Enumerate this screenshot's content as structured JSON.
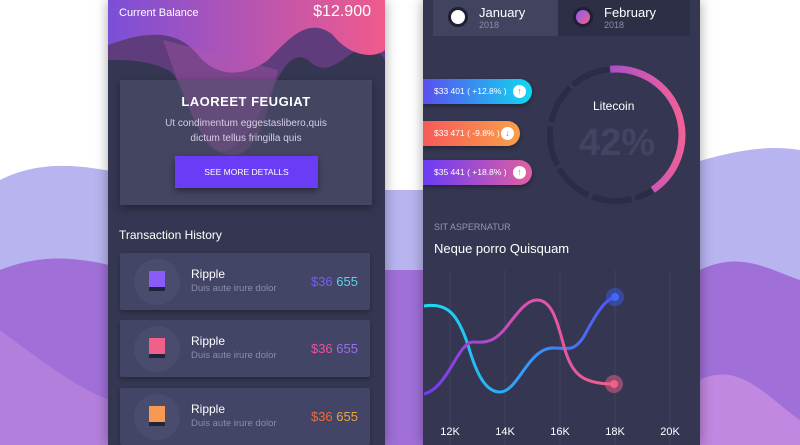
{
  "left": {
    "balance_label": "Current Balance",
    "balance_value": "$12.900",
    "card": {
      "title": "LAOREET FEUGIAT",
      "text": "Ut condimentum eggestaslibero,quis dictum tellus fringilla quis",
      "button": "SEE MORE DETALLS"
    },
    "history_title": "Transaction History",
    "transactions": [
      {
        "name": "Ripple",
        "desc": "Duis aute irure dolor",
        "amount_a": "$36",
        "amount_b": "655",
        "color_a": "#7a5cf0",
        "color_b": "#5fd2e8",
        "icon_color": "#8a5cf5"
      },
      {
        "name": "Ripple",
        "desc": "Duis aute irure dolor",
        "amount_a": "$36",
        "amount_b": "655",
        "color_a": "#f0509a",
        "color_b": "#9a6cf0",
        "icon_color": "#f0608a"
      },
      {
        "name": "Ripple",
        "desc": "Duis aute irure dolor",
        "amount_a": "$36",
        "amount_b": "655",
        "color_a": "#f06a3a",
        "color_b": "#f0a040",
        "icon_color": "#f59a50"
      }
    ]
  },
  "right": {
    "tabs": [
      {
        "month": "January",
        "year": "2018"
      },
      {
        "month": "February",
        "year": "2018"
      }
    ],
    "pills": [
      {
        "text": "$33 401 ( +12.8% )",
        "icon": "arrow-up-icon",
        "glyph": "↑"
      },
      {
        "text": "$33 471 ( -9.8% )",
        "icon": "arrow-down-icon",
        "glyph": "↓"
      },
      {
        "text": "$35 441 ( +18.8% )",
        "icon": "arrow-up-icon",
        "glyph": "↑"
      }
    ],
    "ring": {
      "label": "Litecoin",
      "percent": "42%",
      "value": 42
    },
    "chart_subtitle": "SIT ASPERNATUR",
    "chart_title": "Neque porro Quisquam",
    "x_ticks": [
      "12K",
      "14K",
      "16K",
      "18K",
      "20K"
    ]
  }
}
